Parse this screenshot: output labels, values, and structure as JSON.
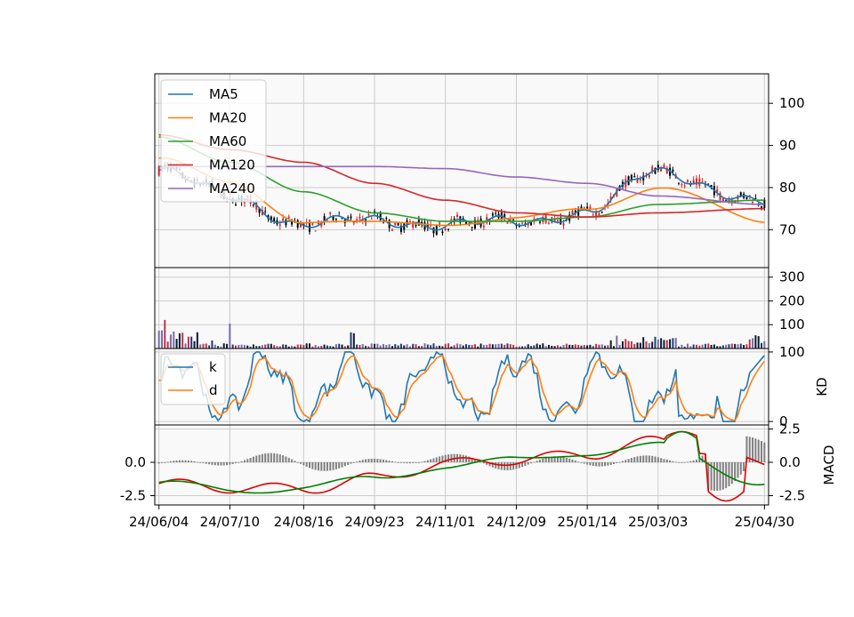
{
  "chart_data": [
    {
      "panel": "price",
      "type": "candlestick",
      "yticks": [
        70,
        80,
        90,
        100
      ],
      "ylim": [
        61,
        107
      ],
      "grid": true,
      "legend": {
        "placement": "top-left",
        "entries": [
          "MA5",
          "MA20",
          "MA60",
          "MA120",
          "MA240"
        ]
      },
      "colors": {
        "up": "#d62728",
        "down": "#000000",
        "MA5": "#1f77b4",
        "MA20": "#ff7f0e",
        "MA60": "#2ca02c",
        "MA120": "#d62728",
        "MA240": "#9467bd"
      },
      "series": [
        {
          "name": "MA5",
          "values_at_dates": {
            "24/06/04": 84,
            "24/07/10": 78,
            "24/08/16": 71,
            "24/09/23": 72.5,
            "24/11/01": 71,
            "24/12/09": 72,
            "25/01/14": 74,
            "25/03/03": 84,
            "25/04/30": 76
          }
        },
        {
          "name": "MA20",
          "values_at_dates": {
            "24/06/04": 87,
            "24/07/10": 81,
            "24/08/16": 72,
            "24/09/23": 71.5,
            "24/11/01": 71.5,
            "24/12/09": 72.5,
            "25/01/14": 75,
            "25/03/03": 80,
            "25/04/30": 72
          }
        },
        {
          "name": "MA60",
          "values_at_dates": {
            "24/06/04": 92,
            "24/07/10": 86,
            "24/08/16": 79,
            "24/09/23": 74,
            "24/11/01": 72,
            "24/12/09": 72,
            "25/01/14": 73,
            "25/03/03": 76,
            "25/04/30": 77
          }
        },
        {
          "name": "MA120",
          "values_at_dates": {
            "24/06/04": 92.5,
            "24/07/10": 89,
            "24/08/16": 86,
            "24/09/23": 81,
            "24/11/01": 77,
            "24/12/09": 74,
            "25/01/14": 73,
            "25/03/03": 74,
            "25/04/30": 75
          }
        },
        {
          "name": "MA240",
          "values_at_dates": {
            "24/06/04": 85,
            "24/07/10": 85,
            "24/08/16": 85,
            "24/09/23": 85,
            "24/11/01": 84.5,
            "24/12/09": 82.5,
            "25/01/14": 81,
            "25/03/03": 78,
            "25/04/30": 76
          }
        }
      ]
    },
    {
      "panel": "volume",
      "type": "bar",
      "yticks": [
        100,
        200,
        300
      ],
      "ylim": [
        0,
        340
      ],
      "grid": true
    },
    {
      "panel": "KD",
      "type": "line",
      "ylabel": "KD",
      "yticks": [
        0,
        100
      ],
      "ylim": [
        -5,
        105
      ],
      "grid": true,
      "legend": {
        "placement": "top-left",
        "entries": [
          "k",
          "d"
        ]
      },
      "colors": {
        "k": "#1f77b4",
        "d": "#ff7f0e"
      }
    },
    {
      "panel": "MACD",
      "type": "line+bar",
      "ylabel": "MACD",
      "yticks_left": [
        -2.5,
        0.0
      ],
      "yticks_right": [
        -2.5,
        0.0,
        2.5
      ],
      "ylim": [
        -3.2,
        2.8
      ],
      "grid": true,
      "colors": {
        "dif": "#e00000",
        "signal": "#008000",
        "histogram": "#808080"
      }
    }
  ],
  "xaxis": {
    "tick_labels": [
      "24/06/04",
      "24/07/10",
      "24/08/16",
      "24/09/23",
      "24/11/01",
      "24/12/09",
      "25/01/14",
      "25/03/03",
      "25/04/30"
    ],
    "tick_positions": [
      0,
      24,
      49,
      73,
      97,
      121,
      145,
      169,
      205
    ],
    "n_bars": 206
  }
}
